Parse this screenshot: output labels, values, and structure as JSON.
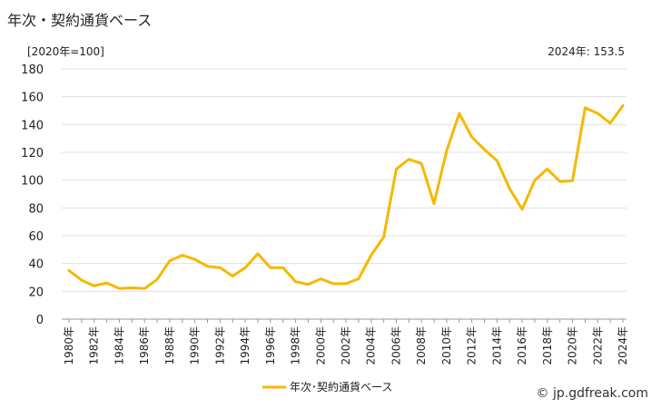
{
  "title": "年次・契約通貨ベース",
  "unit_label": "[2020年=100]",
  "latest_label": "2024年: 153.5",
  "credit": "© jp.gdfreak.com",
  "colors": {
    "line": "#f5b800",
    "grid": "#e0e0e0",
    "axis": "#999999"
  },
  "chart_data": {
    "type": "line",
    "title": "年次・契約通貨ベース",
    "ylabel": "[2020年=100]",
    "ylim": [
      0,
      180
    ],
    "yticks": [
      0,
      20,
      40,
      60,
      80,
      100,
      120,
      140,
      160,
      180
    ],
    "grid": true,
    "legend_position": "bottom",
    "x": [
      1980,
      1981,
      1982,
      1983,
      1984,
      1985,
      1986,
      1987,
      1988,
      1989,
      1990,
      1991,
      1992,
      1993,
      1994,
      1995,
      1996,
      1997,
      1998,
      1999,
      2000,
      2001,
      2002,
      2003,
      2004,
      2005,
      2006,
      2007,
      2008,
      2009,
      2010,
      2011,
      2012,
      2013,
      2014,
      2015,
      2016,
      2017,
      2018,
      2019,
      2020,
      2021,
      2022,
      2023,
      2024
    ],
    "xtick_labels": [
      "1980年",
      "1982年",
      "1984年",
      "1986年",
      "1988年",
      "1990年",
      "1992年",
      "1994年",
      "1996年",
      "1998年",
      "2000年",
      "2002年",
      "2004年",
      "2006年",
      "2008年",
      "2010年",
      "2012年",
      "2014年",
      "2016年",
      "2018年",
      "2020年",
      "2022年",
      "2024年"
    ],
    "series": [
      {
        "name": "年次･契約通貨ベース",
        "values": [
          35,
          28,
          24,
          26,
          22,
          22.5,
          22,
          28.5,
          42,
          46,
          43,
          38,
          37,
          31,
          37,
          47,
          37,
          37,
          27,
          25,
          29,
          25.5,
          25.5,
          29,
          46,
          59,
          108,
          115,
          112,
          83,
          121,
          148,
          131,
          122,
          114,
          94,
          79,
          100,
          108,
          99,
          99.5,
          152,
          148,
          141,
          153.5
        ]
      }
    ]
  }
}
